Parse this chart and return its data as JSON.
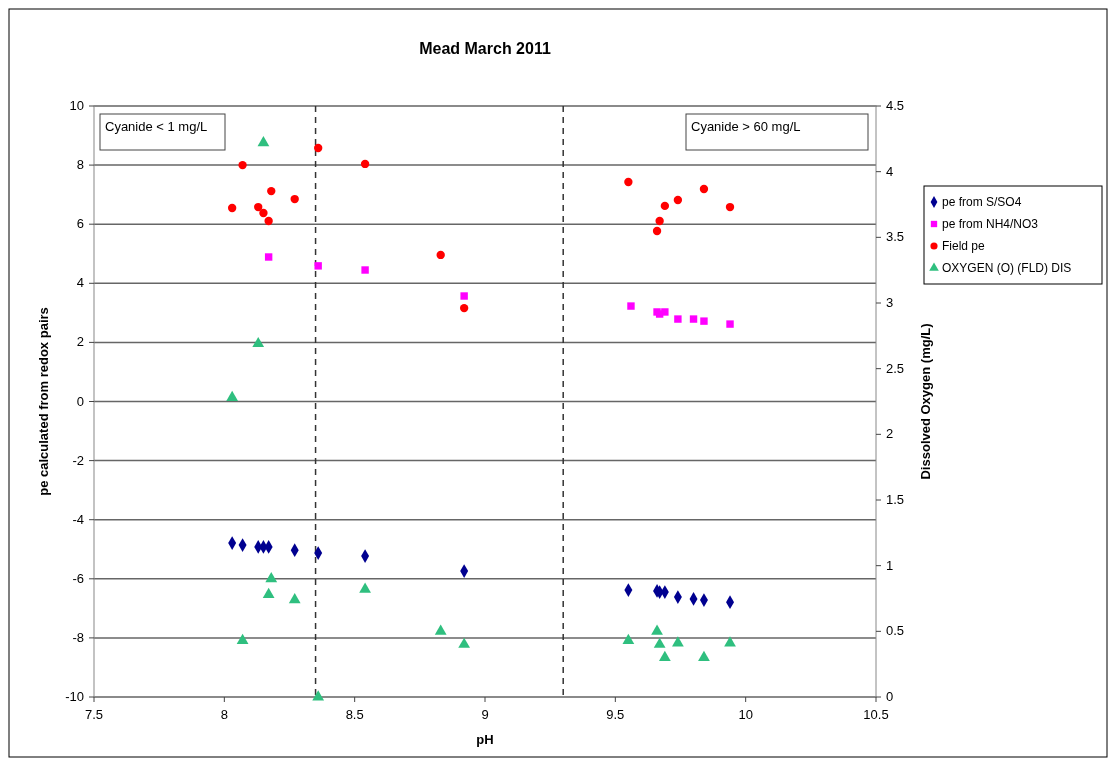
{
  "chart_data": {
    "type": "scatter",
    "title": "Mead March 2011",
    "xlabel": "pH",
    "ylabel": "pe calculated from redox pairs",
    "y2label": "Dissolved Oxygen (mg/L)",
    "xlim": [
      7.5,
      10.5
    ],
    "xticks": [
      7.5,
      8,
      8.5,
      9,
      9.5,
      10,
      10.5
    ],
    "ylim": [
      -10,
      10
    ],
    "yticks": [
      -10,
      -8,
      -6,
      -4,
      -2,
      0,
      2,
      4,
      6,
      8,
      10
    ],
    "y2lim": [
      0,
      4.5
    ],
    "y2ticks": [
      0,
      0.5,
      1,
      1.5,
      2,
      2.5,
      3,
      3.5,
      4,
      4.5
    ],
    "grid": "y",
    "legend": "right",
    "ref_lines": [
      {
        "axis": "x",
        "value": 8.35,
        "line_style": "dashed",
        "color": "#333333"
      },
      {
        "axis": "x",
        "value": 9.3,
        "line_style": "dashed",
        "color": "#333333"
      }
    ],
    "annotations": [
      "Cyanide < 1 mg/L",
      "Cyanide > 60 mg/L"
    ],
    "series": [
      {
        "name": "pe from S/SO4",
        "color": "#000090",
        "marker": "diamond",
        "x": [
          8.03,
          8.07,
          8.13,
          8.15,
          8.17,
          8.27,
          8.36,
          8.54,
          8.92,
          9.55,
          9.66,
          9.67,
          9.69,
          9.74,
          9.8,
          9.84,
          9.94
        ],
        "values": [
          -4.79,
          -4.86,
          -4.92,
          -4.92,
          -4.92,
          -5.03,
          -5.13,
          -5.23,
          -5.74,
          -6.38,
          -6.41,
          -6.45,
          -6.45,
          -6.62,
          -6.68,
          -6.72,
          -6.79
        ]
      },
      {
        "name": "pe from NH4/NO3",
        "color": "#ff00ff",
        "marker": "square",
        "x": [
          8.17,
          8.36,
          8.54,
          8.92,
          9.56,
          9.66,
          9.67,
          9.69,
          9.74,
          9.8,
          9.84,
          9.94
        ],
        "values": [
          4.89,
          4.59,
          4.45,
          3.57,
          3.23,
          3.03,
          2.96,
          3.03,
          2.79,
          2.79,
          2.72,
          2.62
        ]
      },
      {
        "name": "Field pe",
        "color": "#ff0000",
        "marker": "circle",
        "x": [
          8.03,
          8.07,
          8.13,
          8.15,
          8.17,
          8.18,
          8.27,
          8.36,
          8.54,
          8.83,
          8.92,
          9.55,
          9.66,
          9.67,
          9.69,
          9.74,
          9.84,
          9.94
        ],
        "values": [
          6.55,
          8.0,
          6.58,
          6.38,
          6.11,
          7.12,
          6.85,
          8.58,
          8.04,
          4.96,
          3.16,
          7.43,
          5.77,
          6.11,
          6.62,
          6.82,
          7.19,
          6.58
        ]
      },
      {
        "name": "OXYGEN (O) (FLD) DIS",
        "color": "#2fbf7f",
        "marker": "triangle",
        "axis": "y2",
        "x": [
          8.03,
          8.07,
          8.13,
          8.15,
          8.17,
          8.18,
          8.27,
          8.36,
          8.54,
          8.83,
          8.92,
          9.55,
          9.66,
          9.67,
          9.69,
          9.74,
          9.84,
          9.94
        ],
        "values": [
          2.28,
          0.43,
          2.69,
          4.22,
          0.78,
          0.9,
          0.74,
          0,
          0.82,
          0.5,
          0.4,
          0.43,
          0.5,
          0.4,
          0.3,
          0.41,
          0.3,
          0.41
        ]
      }
    ]
  }
}
